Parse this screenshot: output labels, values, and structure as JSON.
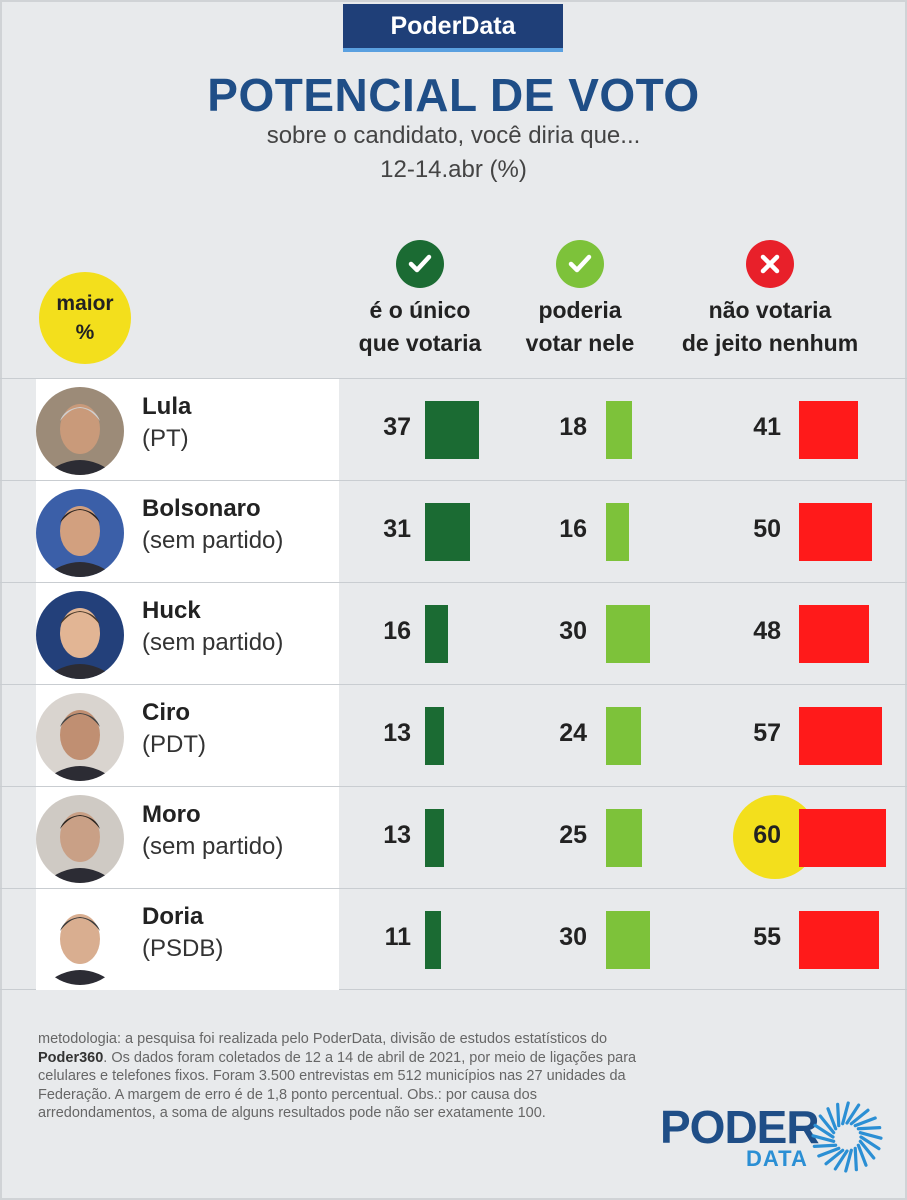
{
  "brand": "PoderData",
  "title": "POTENCIAL DE VOTO",
  "subtitle": "sobre o candidato, você diria que...",
  "period": "12-14.abr (%)",
  "maior_badge": {
    "line1": "maior",
    "line2": "%"
  },
  "columns": [
    {
      "line1": "é o único",
      "line2": "que votaria",
      "icon": "check-icon",
      "color": "#1b6b33"
    },
    {
      "line1": "poderia",
      "line2": "votar nele",
      "icon": "check-icon",
      "color": "#7dc23a"
    },
    {
      "line1": "não votaria",
      "line2": "de jeito nenhum",
      "icon": "x-icon",
      "color": "#e8202a"
    }
  ],
  "chart_data": {
    "type": "bar",
    "categories": [
      "Lula",
      "Bolsonaro",
      "Huck",
      "Ciro",
      "Moro",
      "Doria"
    ],
    "parties": [
      "(PT)",
      "(sem partido)",
      "(sem partido)",
      "(PDT)",
      "(sem partido)",
      "(PSDB)"
    ],
    "series": [
      {
        "name": "é o único que votaria",
        "values": [
          37,
          31,
          16,
          13,
          13,
          11
        ],
        "color": "#1b6b33"
      },
      {
        "name": "poderia votar nele",
        "values": [
          18,
          16,
          30,
          24,
          25,
          30
        ],
        "color": "#7dc23a"
      },
      {
        "name": "não votaria de jeito nenhum",
        "values": [
          41,
          50,
          48,
          57,
          60,
          55
        ],
        "color": "#ff1a1a"
      }
    ],
    "highlight": {
      "series": 2,
      "category": 4
    },
    "unit": "%"
  },
  "footnote": {
    "part1": "metodologia: a pesquisa foi realizada pelo PoderData, divisão de estudos estatísticos do ",
    "bold": "Poder360",
    "part2": ". Os dados foram coletados de 12 a 14 de abril de 2021, por meio de ligações para celulares e telefones fixos. Foram 3.500 entrevistas em 512 municípios nas 27 unidades da Federação. A margem de erro é de 1,8 ponto percentual. Obs.: por causa dos arredondamentos, a soma de alguns resultados pode não ser exatamente 100."
  },
  "logo": {
    "word": "PODER",
    "sub": "DATA"
  }
}
